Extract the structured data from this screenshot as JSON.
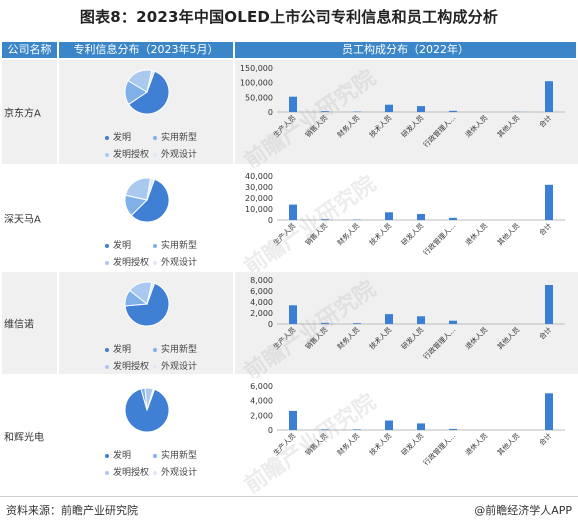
{
  "title": "图表8：2023年中国OLED上市公司专利信息和员工构成分析",
  "headers": {
    "company": "公司名称",
    "patent": "专利信息分布（2023年5月）",
    "staff": "员工构成分布（2022年）"
  },
  "legend": [
    "发明",
    "实用新型",
    "发明授权",
    "外观设计"
  ],
  "colors": {
    "accent": "#3a86c8",
    "bar": "#3a7fd5",
    "pie": [
      "#3f7fd4",
      "#7fb0e8",
      "#a9c9ef",
      "#dfe9f7"
    ]
  },
  "watermark": "前瞻产业研究院",
  "footer": {
    "source": "资料来源：前瞻产业研究院",
    "brand": "@前瞻经济学人APP"
  },
  "chart_data": [
    {
      "type": "pie",
      "company": "京东方A",
      "categories": [
        "发明",
        "实用新型",
        "发明授权",
        "外观设计"
      ],
      "values": [
        60,
        18,
        20,
        2
      ]
    },
    {
      "type": "bar",
      "company": "京东方A",
      "categories": [
        "生产人员",
        "销售人员",
        "财务人员",
        "技术人员",
        "研发人员",
        "行政管理人…",
        "退休人员",
        "其他人员",
        "合计"
      ],
      "values": [
        52000,
        3000,
        1500,
        25000,
        20000,
        4000,
        0,
        800,
        105000
      ],
      "ylim": [
        0,
        150000
      ],
      "yticks": [
        "0",
        "50,000",
        "100,000",
        "150,000"
      ]
    },
    {
      "type": "pie",
      "company": "深天马A",
      "categories": [
        "发明",
        "实用新型",
        "发明授权",
        "外观设计"
      ],
      "values": [
        57,
        16,
        24,
        3
      ]
    },
    {
      "type": "bar",
      "company": "深天马A",
      "categories": [
        "生产人员",
        "销售人员",
        "财务人员",
        "技术人员",
        "研发人员",
        "行政管理人…",
        "退休人员",
        "其他人员",
        "合计"
      ],
      "values": [
        14000,
        800,
        400,
        7000,
        5500,
        2000,
        0,
        0,
        32000
      ],
      "ylim": [
        0,
        40000
      ],
      "yticks": [
        "0",
        "10,000",
        "20,000",
        "30,000",
        "40,000"
      ]
    },
    {
      "type": "pie",
      "company": "维信诺",
      "categories": [
        "发明",
        "实用新型",
        "发明授权",
        "外观设计"
      ],
      "values": [
        68,
        12,
        18,
        2
      ]
    },
    {
      "type": "bar",
      "company": "维信诺",
      "categories": [
        "生产人员",
        "销售人员",
        "财务人员",
        "技术人员",
        "研发人员",
        "行政管理人…",
        "退休人员",
        "其他人员",
        "合计"
      ],
      "values": [
        3400,
        200,
        150,
        1800,
        1400,
        600,
        0,
        0,
        7100
      ],
      "ylim": [
        0,
        8000
      ],
      "yticks": [
        "0",
        "2,000",
        "4,000",
        "6,000",
        "8,000"
      ]
    },
    {
      "type": "pie",
      "company": "和辉光电",
      "categories": [
        "发明",
        "实用新型",
        "发明授权",
        "外观设计"
      ],
      "values": [
        90,
        3,
        6,
        1
      ]
    },
    {
      "type": "bar",
      "company": "和辉光电",
      "categories": [
        "生产人员",
        "销售人员",
        "财务人员",
        "技术人员",
        "研发人员",
        "行政管理人…",
        "退休人员",
        "其他人员",
        "合计"
      ],
      "values": [
        2600,
        100,
        80,
        1300,
        900,
        150,
        0,
        0,
        5000
      ],
      "ylim": [
        0,
        6000
      ],
      "yticks": [
        "0",
        "2,000",
        "4,000",
        "6,000"
      ]
    }
  ]
}
